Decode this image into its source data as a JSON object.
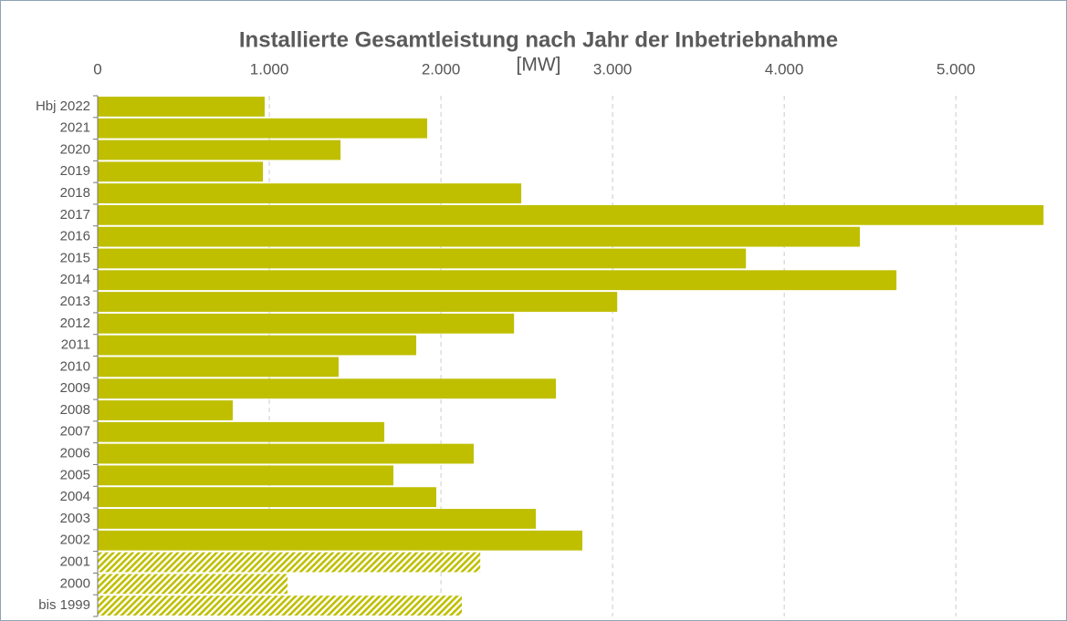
{
  "chart_data": {
    "type": "hbar",
    "title": "Installierte Gesamtleistung nach Jahr der Inbetriebnahme",
    "x_label": "[MW]",
    "categories": [
      "Hbj 2022",
      "2021",
      "2020",
      "2019",
      "2018",
      "2017",
      "2016",
      "2015",
      "2014",
      "2013",
      "2012",
      "2011",
      "2010",
      "2009",
      "2008",
      "2007",
      "2006",
      "2005",
      "2004",
      "2003",
      "2002",
      "2001",
      "2000",
      "bis 1999"
    ],
    "values": [
      973,
      1920,
      1415,
      963,
      2468,
      5511,
      4441,
      3777,
      4654,
      3027,
      2426,
      1856,
      1404,
      2670,
      787,
      1670,
      2191,
      1723,
      1973,
      2553,
      2824,
      2229,
      1106,
      2122
    ],
    "hatched": [
      false,
      false,
      false,
      false,
      false,
      false,
      false,
      false,
      false,
      false,
      false,
      false,
      false,
      false,
      false,
      false,
      false,
      false,
      false,
      false,
      false,
      true,
      true,
      true
    ],
    "color": "#bfbf00",
    "xlim": [
      0,
      5520
    ],
    "xticks": [
      0,
      {
        "value": 1000,
        "label": "1.000"
      },
      {
        "value": 2000,
        "label": "2.000"
      },
      {
        "value": 3000,
        "label": "3.000"
      },
      {
        "value": 4000,
        "label": "4.000"
      },
      {
        "value": 5000,
        "label": "5.000"
      }
    ],
    "grid": true
  }
}
